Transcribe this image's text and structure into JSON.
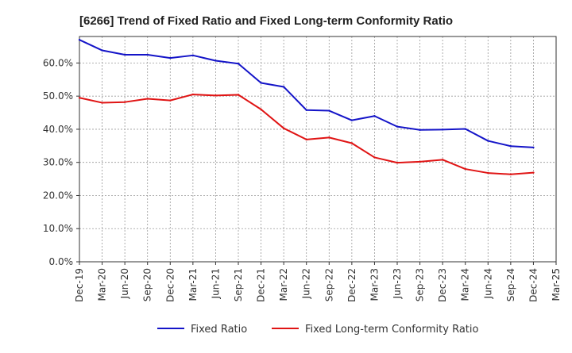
{
  "chart_data": {
    "type": "line",
    "title": "[6266]  Trend of Fixed Ratio and Fixed Long-term Conformity Ratio",
    "xlabel": "",
    "ylabel": "",
    "x_ticks": [
      "Dec-19",
      "Mar-20",
      "Jun-20",
      "Sep-20",
      "Dec-20",
      "Mar-21",
      "Jun-21",
      "Sep-21",
      "Dec-21",
      "Mar-22",
      "Jun-22",
      "Sep-22",
      "Dec-22",
      "Mar-23",
      "Jun-23",
      "Sep-23",
      "Dec-23",
      "Mar-24",
      "Jun-24",
      "Sep-24",
      "Dec-24",
      "Mar-25"
    ],
    "x": [
      "Dec-19",
      "Mar-20",
      "Jun-20",
      "Sep-20",
      "Dec-20",
      "Mar-21",
      "Jun-21",
      "Sep-21",
      "Dec-21",
      "Mar-22",
      "Jun-22",
      "Sep-22",
      "Dec-22",
      "Mar-23",
      "Jun-23",
      "Sep-23",
      "Dec-23",
      "Mar-24",
      "Jun-24",
      "Sep-24",
      "Dec-24"
    ],
    "y_ticks": [
      "0.0%",
      "10.0%",
      "20.0%",
      "30.0%",
      "40.0%",
      "50.0%",
      "60.0%"
    ],
    "ylim": [
      0,
      68
    ],
    "y_unit": "%",
    "grid": true,
    "legend_position": "bottom",
    "series": [
      {
        "name": "Fixed Ratio",
        "color": "#1414c8",
        "values": [
          67.0,
          63.8,
          62.5,
          62.5,
          61.5,
          62.3,
          60.7,
          59.8,
          54.0,
          52.8,
          45.8,
          45.6,
          42.7,
          44.0,
          40.8,
          39.8,
          39.9,
          40.1,
          36.5,
          34.9,
          34.5
        ]
      },
      {
        "name": "Fixed Long-term Conformity Ratio",
        "color": "#e01414",
        "values": [
          49.5,
          48.0,
          48.2,
          49.2,
          48.7,
          50.5,
          50.2,
          50.4,
          46.0,
          40.3,
          36.9,
          37.5,
          35.8,
          31.5,
          29.9,
          30.2,
          30.8,
          28.0,
          26.8,
          26.4,
          26.9
        ]
      }
    ]
  }
}
